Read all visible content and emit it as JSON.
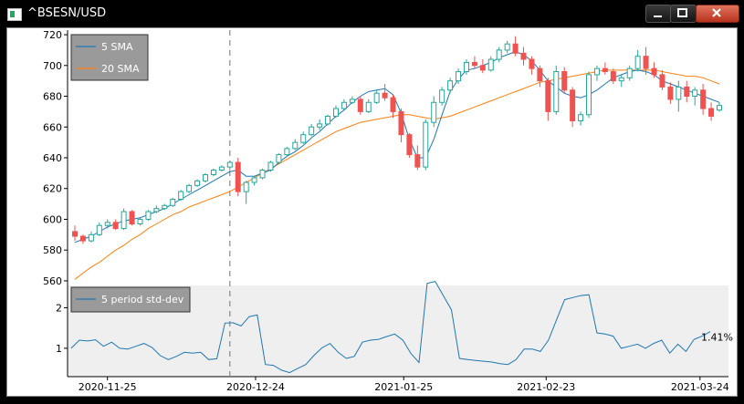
{
  "window": {
    "title": "^BSESN/USD",
    "min_icon": "minimize-icon",
    "max_icon": "maximize-icon",
    "close_icon": "close-icon"
  },
  "chart_data": [
    {
      "type": "candlestick",
      "ylim": [
        557,
        723
      ],
      "yticks": [
        560,
        580,
        600,
        620,
        640,
        660,
        680,
        700,
        720
      ],
      "legend": {
        "placement": "top-left",
        "entries": [
          {
            "name": "5 SMA",
            "color": "#1f77b4"
          },
          {
            "name": "20 SMA",
            "color": "#ff7f0e"
          }
        ]
      },
      "up_color": "#26a69a",
      "down_color": "#ef5350",
      "crosshair_index": 19,
      "candles": [
        [
          592,
          596,
          586,
          589
        ],
        [
          589,
          590,
          584,
          586
        ],
        [
          586,
          592,
          585,
          590
        ],
        [
          590,
          598,
          589,
          596
        ],
        [
          596,
          600,
          594,
          598
        ],
        [
          598,
          600,
          593,
          594
        ],
        [
          594,
          607,
          593,
          605
        ],
        [
          605,
          606,
          596,
          597
        ],
        [
          597,
          601,
          596,
          600
        ],
        [
          600,
          606,
          599,
          605
        ],
        [
          605,
          609,
          604,
          607
        ],
        [
          607,
          610,
          606,
          609
        ],
        [
          609,
          614,
          608,
          613
        ],
        [
          613,
          619,
          612,
          618
        ],
        [
          618,
          623,
          617,
          622
        ],
        [
          622,
          626,
          621,
          625
        ],
        [
          625,
          630,
          624,
          629
        ],
        [
          629,
          633,
          628,
          632
        ],
        [
          632,
          635,
          631,
          634
        ],
        [
          634,
          638,
          632,
          637
        ],
        [
          637,
          640,
          615,
          618
        ],
        [
          618,
          625,
          610,
          624
        ],
        [
          624,
          628,
          622,
          627
        ],
        [
          627,
          633,
          626,
          632
        ],
        [
          632,
          638,
          631,
          637
        ],
        [
          637,
          643,
          636,
          642
        ],
        [
          642,
          647,
          641,
          646
        ],
        [
          646,
          652,
          645,
          650
        ],
        [
          650,
          657,
          649,
          655
        ],
        [
          655,
          662,
          654,
          660
        ],
        [
          660,
          665,
          658,
          662
        ],
        [
          662,
          668,
          661,
          667
        ],
        [
          667,
          674,
          666,
          672
        ],
        [
          672,
          678,
          671,
          676
        ],
        [
          676,
          680,
          675,
          678
        ],
        [
          678,
          680,
          668,
          670
        ],
        [
          670,
          678,
          669,
          676
        ],
        [
          676,
          684,
          675,
          682
        ],
        [
          682,
          688,
          677,
          679
        ],
        [
          679,
          681,
          666,
          670
        ],
        [
          670,
          672,
          650,
          655
        ],
        [
          655,
          656,
          640,
          642
        ],
        [
          642,
          648,
          632,
          634
        ],
        [
          634,
          665,
          632,
          663
        ],
        [
          663,
          680,
          660,
          676
        ],
        [
          676,
          686,
          674,
          684
        ],
        [
          684,
          692,
          682,
          690
        ],
        [
          690,
          698,
          688,
          696
        ],
        [
          696,
          704,
          694,
          702
        ],
        [
          702,
          706,
          698,
          700
        ],
        [
          700,
          704,
          695,
          697
        ],
        [
          697,
          706,
          696,
          704
        ],
        [
          704,
          712,
          702,
          710
        ],
        [
          710,
          716,
          708,
          714
        ],
        [
          714,
          719,
          706,
          708
        ],
        [
          708,
          712,
          700,
          704
        ],
        [
          704,
          706,
          694,
          698
        ],
        [
          698,
          700,
          686,
          690
        ],
        [
          690,
          692,
          664,
          670
        ],
        [
          670,
          700,
          668,
          696
        ],
        [
          696,
          699,
          682,
          684
        ],
        [
          684,
          686,
          660,
          664
        ],
        [
          664,
          670,
          661,
          668
        ],
        [
          668,
          696,
          666,
          694
        ],
        [
          694,
          700,
          690,
          698
        ],
        [
          698,
          702,
          694,
          696
        ],
        [
          696,
          698,
          688,
          690
        ],
        [
          690,
          694,
          686,
          692
        ],
        [
          692,
          700,
          690,
          698
        ],
        [
          698,
          710,
          696,
          706
        ],
        [
          706,
          712,
          694,
          698
        ],
        [
          698,
          702,
          692,
          694
        ],
        [
          694,
          697,
          684,
          686
        ],
        [
          686,
          689,
          675,
          678
        ],
        [
          678,
          690,
          670,
          686
        ],
        [
          686,
          690,
          676,
          680
        ],
        [
          680,
          686,
          674,
          684
        ],
        [
          684,
          688,
          668,
          672
        ],
        [
          672,
          676,
          664,
          667
        ],
        [
          671,
          676,
          670,
          674
        ]
      ],
      "sma5": [
        585,
        587,
        589,
        592,
        595,
        597,
        599,
        600,
        601,
        603,
        605,
        607,
        610,
        613,
        616,
        619,
        622,
        625,
        628,
        631,
        632,
        628,
        628,
        630,
        632,
        637,
        641,
        644,
        648,
        653,
        657,
        662,
        667,
        671,
        676,
        680,
        683,
        684,
        685,
        681,
        669,
        652,
        640,
        640,
        652,
        668,
        683,
        691,
        697,
        698,
        700,
        702,
        705,
        707,
        709,
        707,
        703,
        697,
        690,
        686,
        682,
        680,
        679,
        681,
        684,
        688,
        692,
        694,
        696,
        697,
        696,
        694,
        690,
        688,
        686,
        684,
        682,
        680,
        678,
        676
      ],
      "sma20": [
        561,
        565,
        569,
        572,
        576,
        580,
        583,
        587,
        590,
        594,
        597,
        600,
        603,
        605,
        608,
        610,
        612,
        614,
        616,
        618,
        621,
        624,
        627,
        630,
        633,
        636,
        639,
        642,
        645,
        648,
        651,
        654,
        657,
        659,
        661,
        663,
        664,
        665,
        666,
        667,
        668,
        668,
        667,
        666,
        665,
        666,
        667,
        669,
        671,
        673,
        675,
        677,
        679,
        681,
        683,
        685,
        687,
        689,
        690,
        691,
        692,
        693,
        694,
        695,
        696,
        697,
        697,
        697,
        697,
        697,
        697,
        697,
        696,
        695,
        694,
        693,
        693,
        692,
        690,
        688
      ]
    },
    {
      "type": "line",
      "ylim": [
        0.3,
        2.55
      ],
      "yticks": [
        1,
        2
      ],
      "legend": {
        "placement": "top-left",
        "entries": [
          {
            "name": "5 period std-dev",
            "color": "#1f77b4"
          }
        ]
      },
      "last_value_label": "1.41%",
      "values": [
        1.0,
        1.2,
        1.18,
        1.21,
        1.05,
        1.15,
        1.0,
        0.98,
        1.05,
        1.12,
        1.02,
        0.82,
        0.72,
        0.8,
        0.9,
        0.88,
        0.9,
        0.72,
        0.74,
        1.62,
        1.63,
        1.55,
        1.78,
        1.82,
        0.6,
        0.58,
        0.46,
        0.4,
        0.5,
        0.6,
        0.82,
        1.01,
        1.12,
        0.9,
        0.75,
        0.8,
        1.15,
        1.2,
        1.22,
        1.29,
        1.35,
        1.2,
        0.87,
        0.65,
        2.6,
        2.65,
        2.3,
        1.95,
        0.75,
        0.72,
        0.7,
        0.68,
        0.66,
        0.62,
        0.6,
        0.72,
        0.98,
        0.98,
        0.92,
        1.2,
        1.7,
        2.2,
        2.25,
        2.3,
        2.32,
        1.38,
        1.35,
        1.3,
        1.0,
        1.05,
        1.1,
        1.0,
        1.12,
        1.2,
        0.88,
        1.1,
        0.92,
        1.22,
        1.3,
        1.41
      ],
      "xticks": [
        {
          "index": 7,
          "label": "2020-11-25"
        },
        {
          "index": 33,
          "label": "2020-12-24"
        },
        {
          "index": 59,
          "label": "2021-01-25"
        },
        {
          "index": 84,
          "label": "2021-02-23"
        },
        {
          "index": 111,
          "label": "2021-03-24"
        }
      ],
      "x_count": 117
    }
  ]
}
